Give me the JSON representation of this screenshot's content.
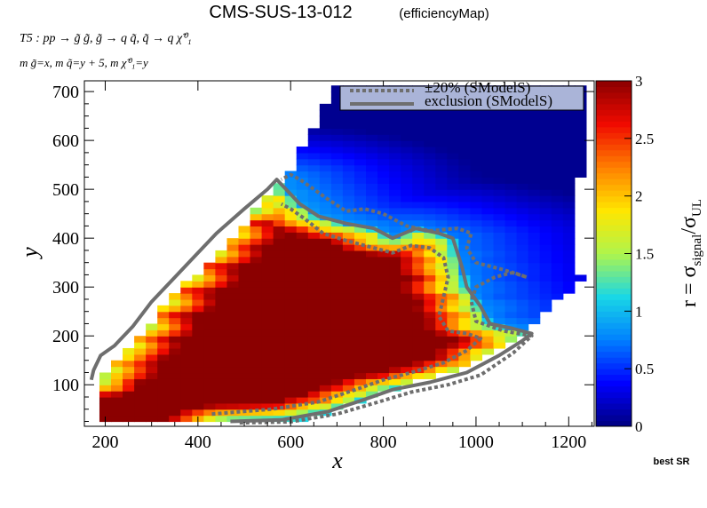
{
  "header": {
    "title": "CMS-SUS-13-012",
    "subtitle": "(efficiencyMap)",
    "process_line": "T5 : pp → g̃ g̃, g̃ → q q̃, q̃ → q χ̃⁰₁",
    "mass_line": "m g̃=x, m q̃=y + 5, m χ̃⁰₁=y"
  },
  "footer": {
    "best_sr": "best SR"
  },
  "colors": {
    "background": "#ffffff",
    "contour": "#6e6e6e",
    "legend_fill": "#aab4d8"
  },
  "chart_data": {
    "type": "heatmap",
    "title": "CMS-SUS-13-012",
    "xlabel": "x",
    "ylabel": "y",
    "zlabel": "r = σ_signal/σ_UL",
    "xlim": [
      155,
      1255
    ],
    "ylim": [
      15,
      722
    ],
    "zlim": [
      0,
      3
    ],
    "x_ticks": [
      200,
      400,
      600,
      800,
      1000,
      1200
    ],
    "y_ticks": [
      100,
      200,
      300,
      400,
      500,
      600,
      700
    ],
    "z_ticks": [
      0,
      0.5,
      1,
      1.5,
      2,
      2.5,
      3
    ],
    "colormap": [
      "#00007f",
      "#0000ff",
      "#0080ff",
      "#19d7e6",
      "#aff54c",
      "#ffe600",
      "#ff7f00",
      "#f00a00",
      "#8b0000"
    ],
    "cell_size": {
      "x": 25,
      "y": 12.5
    },
    "region": {
      "upper_edge": [
        [
          180,
          25
        ],
        [
          200,
          120
        ],
        [
          240,
          165
        ],
        [
          280,
          205
        ],
        [
          330,
          265
        ],
        [
          400,
          330
        ],
        [
          460,
          390
        ],
        [
          520,
          450
        ],
        [
          560,
          500
        ],
        [
          600,
          540
        ],
        [
          630,
          600
        ],
        [
          650,
          630
        ],
        [
          680,
          690
        ],
        [
          700,
          712
        ],
        [
          1250,
          712
        ]
      ],
      "right_edge": [
        [
          1250,
          712
        ],
        [
          1250,
          330
        ],
        [
          1200,
          330
        ],
        [
          1150,
          250
        ],
        [
          1100,
          200
        ],
        [
          1050,
          170
        ],
        [
          980,
          140
        ],
        [
          900,
          115
        ],
        [
          800,
          85
        ],
        [
          700,
          50
        ],
        [
          600,
          25
        ]
      ],
      "bottom_y": 25
    },
    "legend": {
      "position": "top-right",
      "entries": [
        "±20% (SModelS)",
        "exclusion (SModelS)"
      ]
    },
    "grid": false,
    "exclusion_contour": [
      [
        470,
        25
      ],
      [
        580,
        28
      ],
      [
        680,
        45
      ],
      [
        760,
        70
      ],
      [
        820,
        90
      ],
      [
        900,
        105
      ],
      [
        980,
        125
      ],
      [
        1050,
        160
      ],
      [
        1100,
        190
      ],
      [
        1120,
        205
      ],
      [
        1080,
        215
      ],
      [
        1030,
        225
      ],
      [
        1010,
        260
      ],
      [
        980,
        300
      ],
      [
        970,
        340
      ],
      [
        960,
        370
      ],
      [
        950,
        400
      ],
      [
        920,
        410
      ],
      [
        870,
        420
      ],
      [
        820,
        400
      ],
      [
        780,
        420
      ],
      [
        720,
        430
      ],
      [
        660,
        445
      ],
      [
        620,
        470
      ],
      [
        595,
        495
      ],
      [
        570,
        520
      ],
      [
        550,
        500
      ],
      [
        500,
        460
      ],
      [
        440,
        410
      ],
      [
        400,
        370
      ],
      [
        350,
        320
      ],
      [
        300,
        270
      ],
      [
        260,
        220
      ],
      [
        220,
        180
      ],
      [
        190,
        160
      ],
      [
        175,
        130
      ],
      [
        170,
        110
      ]
    ],
    "plus20_contour": [
      [
        490,
        22
      ],
      [
        600,
        24
      ],
      [
        700,
        40
      ],
      [
        790,
        65
      ],
      [
        860,
        85
      ],
      [
        940,
        100
      ],
      [
        1010,
        120
      ],
      [
        1080,
        165
      ],
      [
        1120,
        200
      ],
      [
        1060,
        210
      ],
      [
        1000,
        230
      ],
      [
        990,
        270
      ],
      [
        1000,
        300
      ],
      [
        1040,
        320
      ],
      [
        1080,
        330
      ],
      [
        1110,
        320
      ],
      [
        1060,
        335
      ],
      [
        1000,
        350
      ],
      [
        980,
        380
      ],
      [
        990,
        410
      ],
      [
        960,
        420
      ],
      [
        900,
        415
      ],
      [
        850,
        425
      ],
      [
        800,
        450
      ],
      [
        760,
        460
      ],
      [
        720,
        455
      ],
      [
        680,
        480
      ],
      [
        650,
        500
      ],
      [
        620,
        520
      ],
      [
        600,
        530
      ],
      [
        580,
        520
      ]
    ],
    "minus20_contour": [
      [
        430,
        40
      ],
      [
        560,
        50
      ],
      [
        660,
        65
      ],
      [
        740,
        90
      ],
      [
        800,
        110
      ],
      [
        860,
        125
      ],
      [
        930,
        145
      ],
      [
        980,
        170
      ],
      [
        1010,
        195
      ],
      [
        980,
        205
      ],
      [
        940,
        210
      ],
      [
        920,
        240
      ],
      [
        930,
        280
      ],
      [
        940,
        320
      ],
      [
        930,
        360
      ],
      [
        900,
        380
      ],
      [
        860,
        385
      ],
      [
        820,
        370
      ],
      [
        780,
        380
      ],
      [
        720,
        395
      ],
      [
        670,
        410
      ],
      [
        630,
        440
      ],
      [
        600,
        460
      ],
      [
        580,
        470
      ]
    ]
  }
}
